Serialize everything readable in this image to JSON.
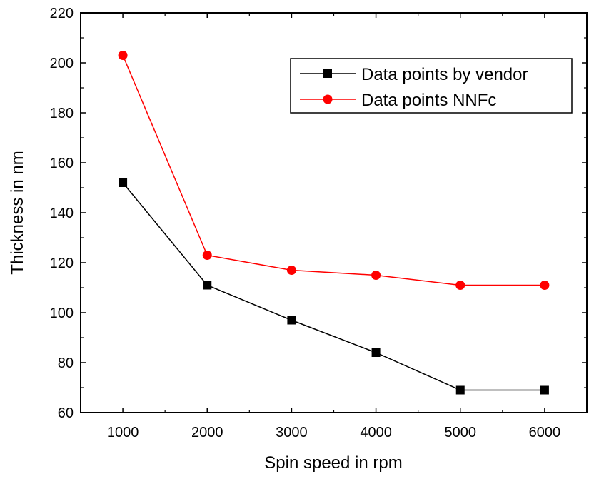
{
  "chart_data": {
    "type": "line",
    "title": "",
    "xlabel": "Spin speed in rpm",
    "ylabel": "Thickness in nm",
    "x": [
      1000,
      2000,
      3000,
      4000,
      5000,
      6000
    ],
    "xlim": [
      500,
      6500
    ],
    "ylim": [
      60,
      220
    ],
    "xticks": [
      "1000",
      "2000",
      "3000",
      "4000",
      "5000",
      "6000"
    ],
    "yticks": [
      "60",
      "80",
      "100",
      "120",
      "140",
      "160",
      "180",
      "200",
      "220"
    ],
    "grid": false,
    "legend_position": "top-right",
    "series": [
      {
        "name": "Data points by vendor",
        "color": "#000000",
        "marker": "square",
        "values": [
          152,
          111,
          97,
          84,
          69,
          69
        ]
      },
      {
        "name": "Data points NNFc",
        "color": "#ff0000",
        "marker": "circle",
        "values": [
          203,
          123,
          117,
          115,
          111,
          111
        ]
      }
    ]
  }
}
